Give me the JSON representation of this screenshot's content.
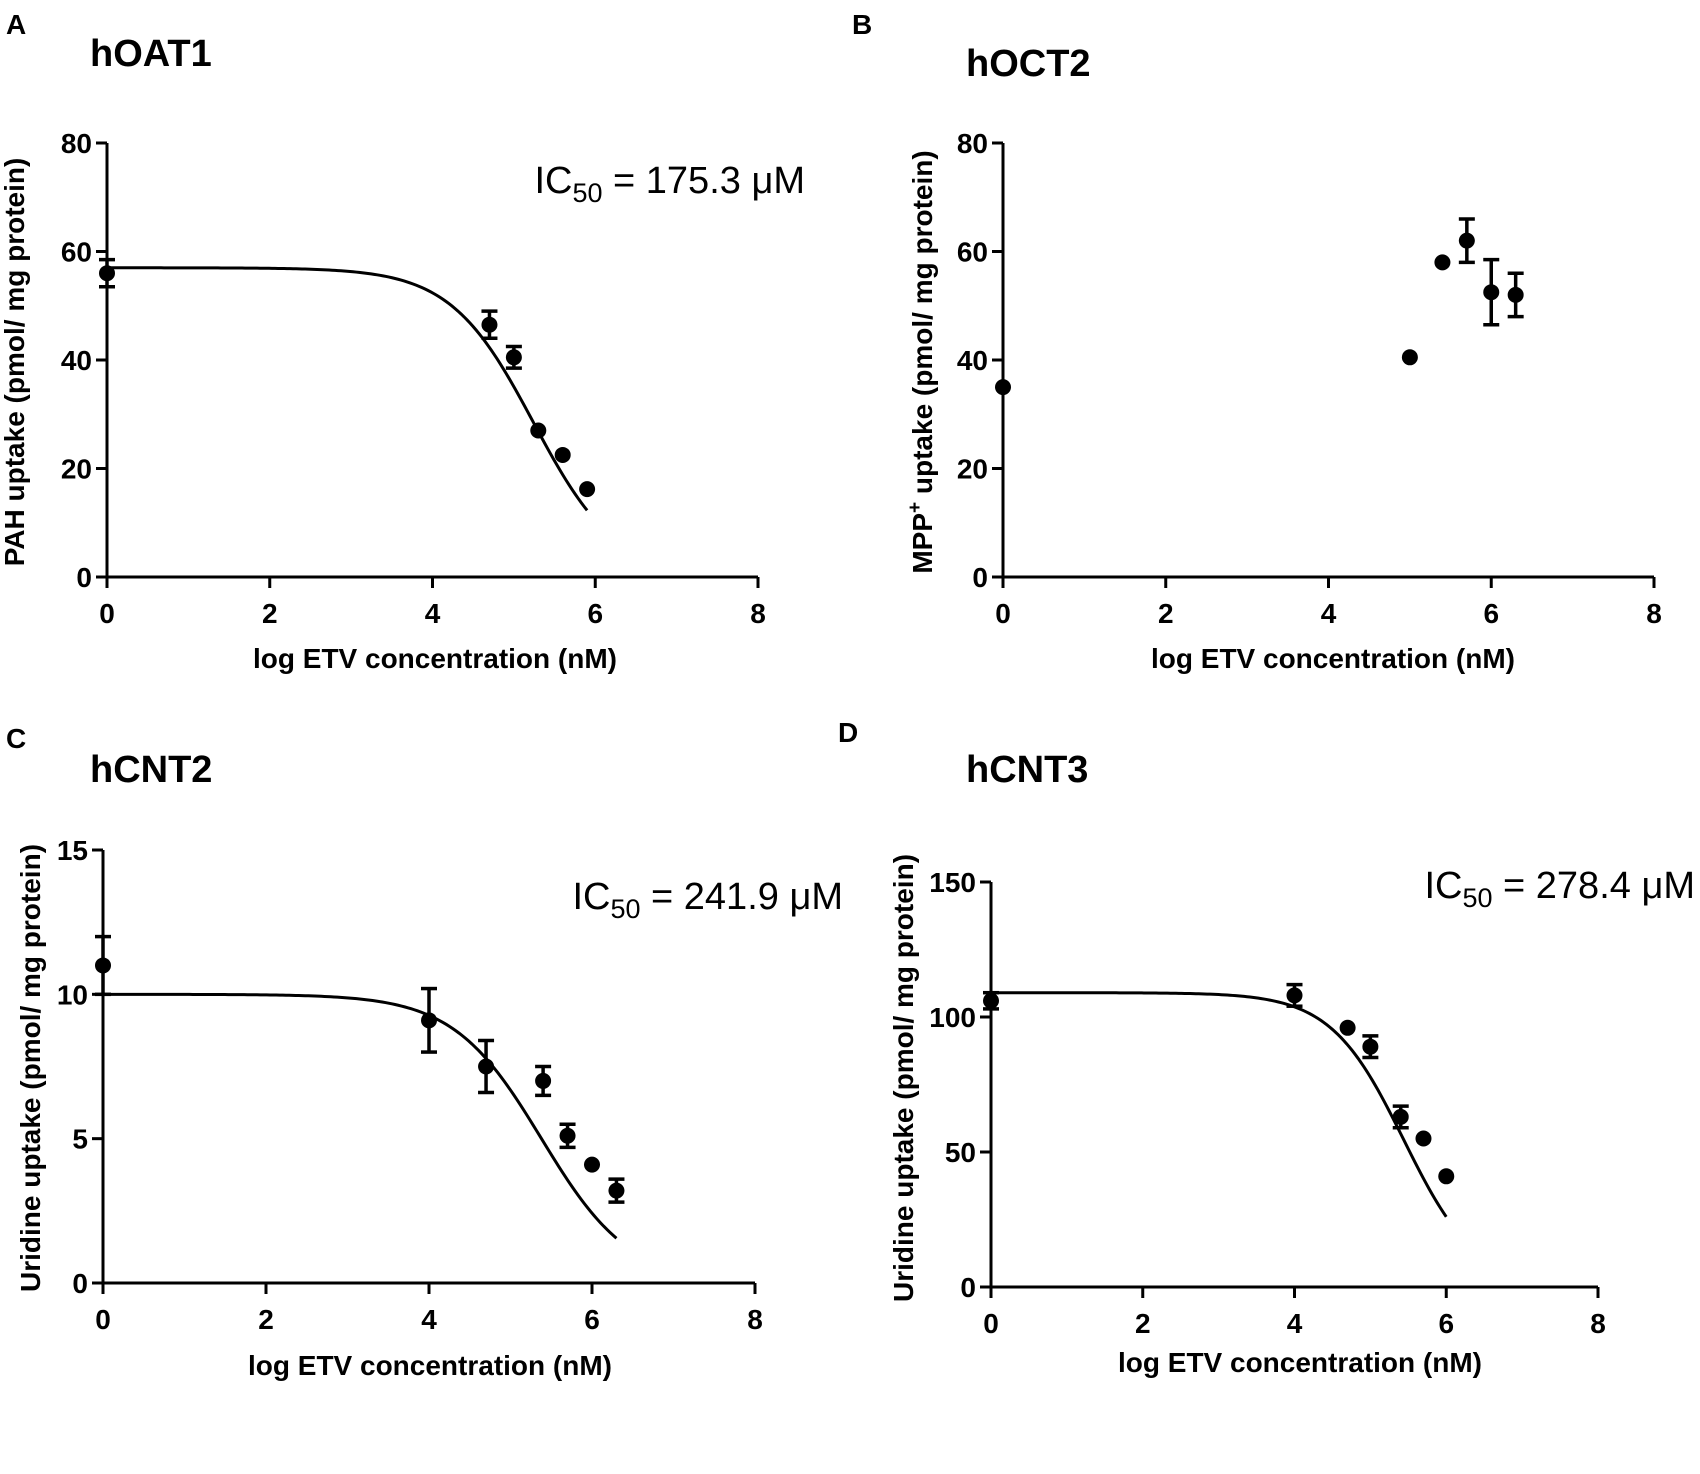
{
  "figure": {
    "colors": {
      "ink": "#000000",
      "background": "#ffffff"
    },
    "ic50_subscript": "50"
  },
  "chart_data": [
    {
      "panel": "A",
      "type": "scatter",
      "title": "hOAT1",
      "xlabel": "log ETV concentration (nM)",
      "ylabel": "PAH uptake (pmol/ mg protein)",
      "xlim": [
        0,
        8
      ],
      "ylim": [
        0,
        80
      ],
      "xticks": [
        0,
        2,
        4,
        6,
        8
      ],
      "yticks": [
        0,
        20,
        40,
        60,
        80
      ],
      "annotation": {
        "prefix": "IC",
        "sub": "50",
        "rest": " = 175.3 μM"
      },
      "points": [
        {
          "x": 0.0,
          "y": 56,
          "err": 2.5
        },
        {
          "x": 4.7,
          "y": 46.5,
          "err": 2.5
        },
        {
          "x": 5.0,
          "y": 40.5,
          "err": 2
        },
        {
          "x": 5.3,
          "y": 27,
          "err": 0
        },
        {
          "x": 5.6,
          "y": 22.5,
          "err": 0
        },
        {
          "x": 5.9,
          "y": 16.2,
          "err": 0
        }
      ],
      "fit": {
        "top": 57,
        "bottom": 0,
        "logIC50": 5.24,
        "hill": 0.85,
        "x_range": [
          0,
          5.9
        ]
      }
    },
    {
      "panel": "B",
      "type": "scatter",
      "title": "hOCT2",
      "xlabel": "log ETV concentration (nM)",
      "ylabel_pre": "MPP",
      "ylabel_sup": "+",
      "ylabel_post": " uptake (pmol/ mg protein)",
      "xlim": [
        0,
        8
      ],
      "ylim": [
        0,
        80
      ],
      "xticks": [
        0,
        2,
        4,
        6,
        8
      ],
      "yticks": [
        0,
        20,
        40,
        60,
        80
      ],
      "points": [
        {
          "x": 0.0,
          "y": 35,
          "err": 0
        },
        {
          "x": 5.0,
          "y": 40.5,
          "err": 0
        },
        {
          "x": 5.4,
          "y": 58,
          "err": 0
        },
        {
          "x": 5.7,
          "y": 62,
          "err": 4
        },
        {
          "x": 6.0,
          "y": 52.5,
          "err": 6
        },
        {
          "x": 6.3,
          "y": 52,
          "err": 4
        }
      ]
    },
    {
      "panel": "C",
      "type": "scatter",
      "title": "hCNT2",
      "xlabel": "log ETV concentration (nM)",
      "ylabel": "Uridine uptake (pmol/ mg protein)",
      "xlim": [
        0,
        8
      ],
      "ylim": [
        0,
        15
      ],
      "xticks": [
        0,
        2,
        4,
        6,
        8
      ],
      "yticks": [
        0,
        5,
        10,
        15
      ],
      "annotation": {
        "prefix": "IC",
        "sub": "50",
        "rest": " = 241.9 μM"
      },
      "points": [
        {
          "x": 0.0,
          "y": 11.0,
          "err": 1.0
        },
        {
          "x": 4.0,
          "y": 9.1,
          "err": 1.1
        },
        {
          "x": 4.7,
          "y": 7.5,
          "err": 0.9
        },
        {
          "x": 5.4,
          "y": 7.0,
          "err": 0.5
        },
        {
          "x": 5.7,
          "y": 5.1,
          "err": 0.4
        },
        {
          "x": 6.0,
          "y": 4.1,
          "err": 0
        },
        {
          "x": 6.3,
          "y": 3.2,
          "err": 0.4
        }
      ],
      "fit": {
        "top": 10.0,
        "bottom": 0,
        "logIC50": 5.38,
        "hill": 0.8,
        "x_range": [
          0,
          6.3
        ]
      }
    },
    {
      "panel": "D",
      "type": "scatter",
      "title": "hCNT3",
      "xlabel": "log ETV concentration (nM)",
      "ylabel": "Uridine uptake (pmol/ mg protein)",
      "xlim": [
        0,
        8
      ],
      "ylim": [
        0,
        150
      ],
      "xticks": [
        0,
        2,
        4,
        6,
        8
      ],
      "yticks": [
        0,
        50,
        100,
        150
      ],
      "annotation": {
        "prefix": "IC",
        "sub": "50",
        "rest": " = 278.4 μM"
      },
      "points": [
        {
          "x": 0.0,
          "y": 106,
          "err": 3
        },
        {
          "x": 4.0,
          "y": 108,
          "err": 4
        },
        {
          "x": 4.7,
          "y": 96,
          "err": 0
        },
        {
          "x": 5.0,
          "y": 89,
          "err": 4
        },
        {
          "x": 5.4,
          "y": 63,
          "err": 4
        },
        {
          "x": 5.7,
          "y": 55,
          "err": 0
        },
        {
          "x": 6.0,
          "y": 41,
          "err": 0
        }
      ],
      "fit": {
        "top": 109,
        "bottom": 0,
        "logIC50": 5.44,
        "hill": 0.9,
        "x_range": [
          0,
          6.0
        ]
      }
    }
  ]
}
